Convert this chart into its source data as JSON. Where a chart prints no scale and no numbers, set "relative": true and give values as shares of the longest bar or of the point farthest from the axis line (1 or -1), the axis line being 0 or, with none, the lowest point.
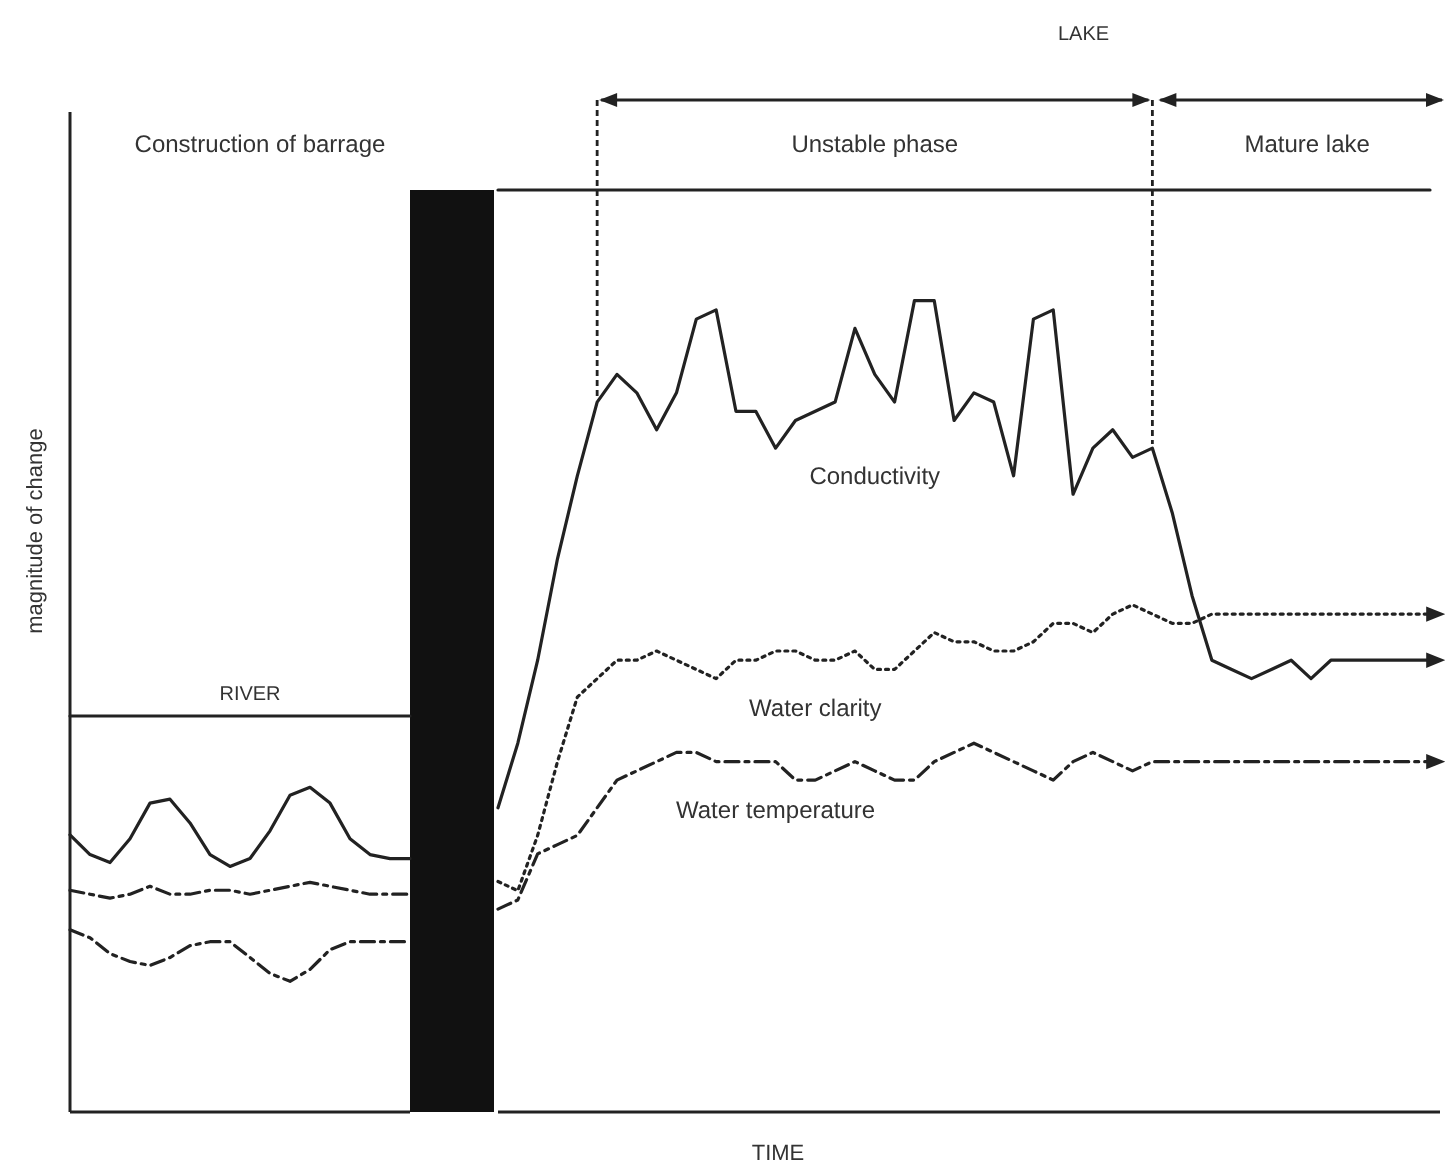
{
  "chart_data": [
    {
      "type": "line",
      "relative": true,
      "ylabel": "magnitude of change",
      "categories": [
        null,
        null,
        null,
        null,
        null,
        null,
        null,
        null,
        null,
        null,
        null,
        null,
        null,
        null,
        null,
        null,
        null,
        null
      ],
      "annotations": [
        "Construction of barrage",
        "RIVER"
      ],
      "series": [
        {
          "color": "#222222",
          "line_style": "solid",
          "values": [
            0.7,
            0.65,
            0.63,
            0.69,
            0.78,
            0.79,
            0.73,
            0.65,
            0.62,
            0.64,
            0.71,
            0.8,
            0.82,
            0.78,
            0.69,
            0.65,
            0.64,
            0.64
          ]
        },
        {
          "color": "#222222",
          "line_style": "dashed",
          "values": [
            0.56,
            0.55,
            0.54,
            0.55,
            0.57,
            0.55,
            0.55,
            0.56,
            0.56,
            0.55,
            0.56,
            0.57,
            0.58,
            0.57,
            0.56,
            0.55,
            0.55,
            0.55
          ]
        },
        {
          "color": "#222222",
          "line_style": "dashed",
          "values": [
            0.46,
            0.44,
            0.4,
            0.38,
            0.37,
            0.39,
            0.42,
            0.43,
            0.43,
            0.39,
            0.35,
            0.33,
            0.36,
            0.41,
            0.43,
            0.43,
            0.43,
            0.43
          ]
        },
        {
          "color": "#222222",
          "line_style": "solid",
          "values": [
            1,
            1,
            1,
            1,
            1,
            1,
            1,
            1,
            1,
            1,
            1,
            1,
            1,
            1,
            1,
            1,
            1,
            1
          ]
        }
      ]
    },
    {
      "type": "line",
      "relative": true,
      "xlabel": "TIME",
      "categories": [
        null,
        null,
        null,
        null,
        null,
        null,
        null,
        null,
        null,
        null,
        null,
        null,
        null,
        null,
        null,
        null,
        null,
        null,
        null,
        null,
        null,
        null,
        null,
        null,
        null,
        null,
        null,
        null,
        null,
        null,
        null,
        null,
        null,
        null,
        null,
        null,
        null,
        null,
        null,
        null,
        null,
        null,
        null,
        null,
        null,
        null,
        null,
        null
      ],
      "annotations": [
        "LAKE",
        "Unstable phase",
        "Mature lake"
      ],
      "series": [
        {
          "name": "Conductivity",
          "color": "#222222",
          "line_style": "solid",
          "values": [
            0.33,
            0.4,
            0.49,
            0.6,
            0.69,
            0.77,
            0.8,
            0.78,
            0.74,
            0.78,
            0.86,
            0.87,
            0.76,
            0.76,
            0.72,
            0.75,
            0.76,
            0.77,
            0.85,
            0.8,
            0.77,
            0.88,
            0.88,
            0.75,
            0.78,
            0.77,
            0.69,
            0.86,
            0.87,
            0.67,
            0.72,
            0.74,
            0.71,
            0.72,
            0.65,
            0.56,
            0.49,
            0.48,
            0.47,
            0.48,
            0.49,
            0.47,
            0.49,
            0.49,
            0.49,
            0.49,
            0.49,
            0.49
          ]
        },
        {
          "name": "Water clarity",
          "color": "#222222",
          "line_style": "dotted",
          "values": [
            0.25,
            0.24,
            0.3,
            0.38,
            0.45,
            0.47,
            0.49,
            0.49,
            0.5,
            0.49,
            0.48,
            0.47,
            0.49,
            0.49,
            0.5,
            0.5,
            0.49,
            0.49,
            0.5,
            0.48,
            0.48,
            0.5,
            0.52,
            0.51,
            0.51,
            0.5,
            0.5,
            0.51,
            0.53,
            0.53,
            0.52,
            0.54,
            0.55,
            0.54,
            0.53,
            0.53,
            0.54,
            0.54,
            0.54,
            0.54,
            0.54,
            0.54,
            0.54,
            0.54,
            0.54,
            0.54,
            0.54,
            0.54
          ]
        },
        {
          "name": "Water temperature",
          "color": "#222222",
          "line_style": "dashed",
          "values": [
            0.22,
            0.23,
            0.28,
            0.29,
            0.3,
            0.33,
            0.36,
            0.37,
            0.38,
            0.39,
            0.39,
            0.38,
            0.38,
            0.38,
            0.38,
            0.36,
            0.36,
            0.37,
            0.38,
            0.37,
            0.36,
            0.36,
            0.38,
            0.39,
            0.4,
            0.39,
            0.38,
            0.37,
            0.36,
            0.38,
            0.39,
            0.38,
            0.37,
            0.38,
            0.38,
            0.38,
            0.38,
            0.38,
            0.38,
            0.38,
            0.38,
            0.38,
            0.38,
            0.38,
            0.38,
            0.38,
            0.38,
            0.38
          ]
        },
        {
          "color": "#222222",
          "line_style": "solid",
          "values": [
            1,
            1,
            1,
            1,
            1,
            1,
            1,
            1,
            1,
            1,
            1,
            1,
            1,
            1,
            1,
            1,
            1,
            1,
            1,
            1,
            1,
            1,
            1,
            1,
            1,
            1,
            1,
            1,
            1,
            1,
            1,
            1,
            1,
            1,
            1,
            1,
            1,
            1,
            1,
            1,
            1,
            1,
            1,
            1,
            1,
            1,
            1,
            1
          ]
        }
      ]
    }
  ]
}
